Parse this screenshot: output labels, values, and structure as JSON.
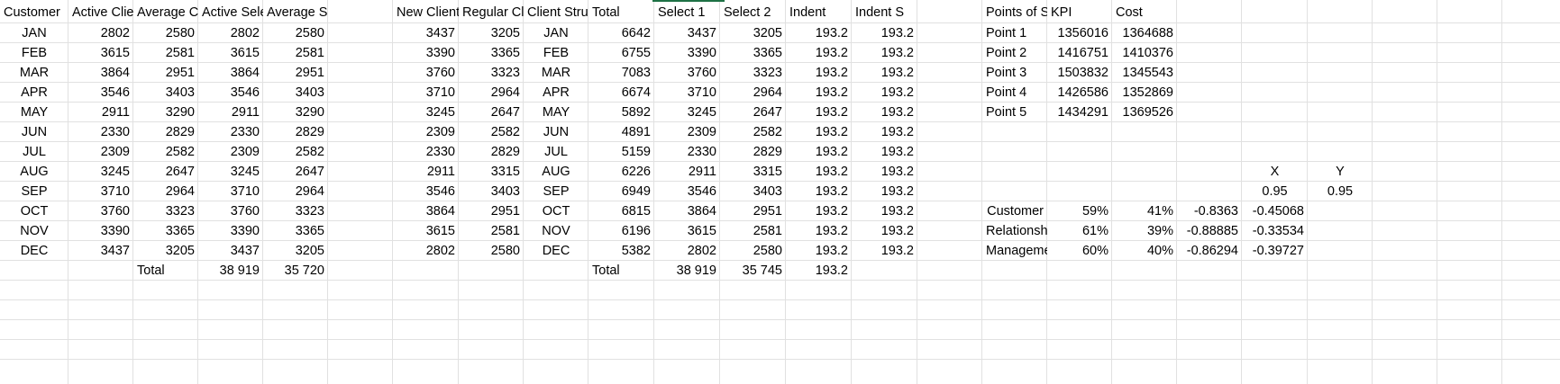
{
  "headers": [
    "Customer",
    "Active Clie",
    "Average Cl",
    "Active Sele",
    "Average Select",
    "",
    "New Client",
    "Regular Cli",
    "Client Struc",
    "Total",
    "Select 1",
    "Select 2",
    "Indent",
    "Indent S",
    "",
    "Points of S",
    "KPI",
    "Cost",
    "",
    "",
    ""
  ],
  "rows": [
    [
      "JAN",
      "2802",
      "2580",
      "2802",
      "2580",
      "",
      "3437",
      "3205",
      "JAN",
      "6642",
      "3437",
      "3205",
      "193.2",
      "193.2",
      "",
      "Point 1",
      "1356016",
      "1364688",
      "",
      "",
      ""
    ],
    [
      "FEB",
      "3615",
      "2581",
      "3615",
      "2581",
      "",
      "3390",
      "3365",
      "FEB",
      "6755",
      "3390",
      "3365",
      "193.2",
      "193.2",
      "",
      "Point 2",
      "1416751",
      "1410376",
      "",
      "",
      ""
    ],
    [
      "MAR",
      "3864",
      "2951",
      "3864",
      "2951",
      "",
      "3760",
      "3323",
      "MAR",
      "7083",
      "3760",
      "3323",
      "193.2",
      "193.2",
      "",
      "Point 3",
      "1503832",
      "1345543",
      "",
      "",
      ""
    ],
    [
      "APR",
      "3546",
      "3403",
      "3546",
      "3403",
      "",
      "3710",
      "2964",
      "APR",
      "6674",
      "3710",
      "2964",
      "193.2",
      "193.2",
      "",
      "Point 4",
      "1426586",
      "1352869",
      "",
      "",
      ""
    ],
    [
      "MAY",
      "2911",
      "3290",
      "2911",
      "3290",
      "",
      "3245",
      "2647",
      "MAY",
      "5892",
      "3245",
      "2647",
      "193.2",
      "193.2",
      "",
      "Point 5",
      "1434291",
      "1369526",
      "",
      "",
      ""
    ],
    [
      "JUN",
      "2330",
      "2829",
      "2330",
      "2829",
      "",
      "2309",
      "2582",
      "JUN",
      "4891",
      "2309",
      "2582",
      "193.2",
      "193.2",
      "",
      "",
      "",
      "",
      "",
      "",
      ""
    ],
    [
      "JUL",
      "2309",
      "2582",
      "2309",
      "2582",
      "",
      "2330",
      "2829",
      "JUL",
      "5159",
      "2330",
      "2829",
      "193.2",
      "193.2",
      "",
      "",
      "",
      "",
      "",
      "",
      ""
    ],
    [
      "AUG",
      "3245",
      "2647",
      "3245",
      "2647",
      "",
      "2911",
      "3315",
      "AUG",
      "6226",
      "2911",
      "3315",
      "193.2",
      "193.2",
      "",
      "",
      "",
      "",
      "",
      "X",
      "Y"
    ],
    [
      "SEP",
      "3710",
      "2964",
      "3710",
      "2964",
      "",
      "3546",
      "3403",
      "SEP",
      "6949",
      "3546",
      "3403",
      "193.2",
      "193.2",
      "",
      "",
      "",
      "",
      "",
      "0.95",
      "0.95"
    ],
    [
      "OCT",
      "3760",
      "3323",
      "3760",
      "3323",
      "",
      "3864",
      "2951",
      "OCT",
      "6815",
      "3864",
      "2951",
      "193.2",
      "193.2",
      "",
      "Customer",
      "59%",
      "41%",
      "-0.8363",
      "-0.45068",
      ""
    ],
    [
      "NOV",
      "3390",
      "3365",
      "3390",
      "3365",
      "",
      "3615",
      "2581",
      "NOV",
      "6196",
      "3615",
      "2581",
      "193.2",
      "193.2",
      "",
      "Relationship",
      "61%",
      "39%",
      "-0.88885",
      "-0.33534",
      ""
    ],
    [
      "DEC",
      "3437",
      "3205",
      "3437",
      "3205",
      "",
      "2802",
      "2580",
      "DEC",
      "5382",
      "2802",
      "2580",
      "193.2",
      "193.2",
      "",
      "Management",
      "60%",
      "40%",
      "-0.86294",
      "-0.39727",
      ""
    ],
    [
      "",
      "",
      "Total",
      "38 919",
      "35 720",
      "",
      "",
      "",
      "",
      "Total",
      "38 919",
      "35 745",
      "193.2",
      "",
      "",
      "",
      "",
      "",
      "",
      "",
      ""
    ]
  ],
  "colors": {
    "grid": "#e1e1e1",
    "selection": "#1e7145"
  }
}
